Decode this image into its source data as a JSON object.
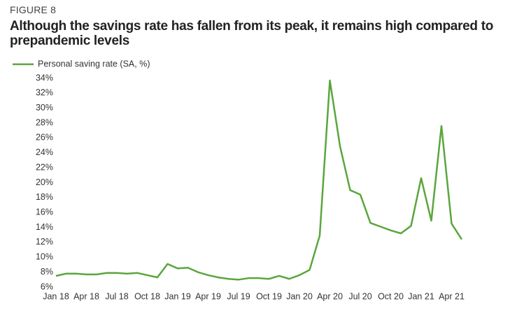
{
  "chart_data": {
    "type": "line",
    "figure_label": "FIGURE 8",
    "title": "Although the savings rate has fallen from its peak, it remains high compared to prepandemic levels",
    "categories": [
      "Jan 18",
      null,
      null,
      "Apr 18",
      null,
      null,
      "Jul 18",
      null,
      null,
      "Oct 18",
      null,
      null,
      "Jan 19",
      null,
      null,
      "Apr 19",
      null,
      null,
      "Jul 19",
      null,
      null,
      "Oct 19",
      null,
      null,
      "Jan 20",
      null,
      null,
      "Apr 20",
      null,
      null,
      "Jul 20",
      null,
      null,
      "Oct 20",
      null,
      null,
      "Jan 21",
      null,
      null,
      "Apr 21",
      null
    ],
    "series": [
      {
        "name": "Personal saving rate (SA, %)",
        "color": "#5aa63c",
        "values": [
          7.5,
          7.8,
          7.8,
          7.7,
          7.7,
          7.9,
          7.9,
          7.8,
          7.9,
          7.6,
          7.3,
          9.1,
          8.5,
          8.6,
          8.0,
          7.6,
          7.3,
          7.1,
          7.0,
          7.2,
          7.2,
          7.1,
          7.5,
          7.1,
          7.6,
          8.3,
          12.9,
          33.7,
          24.9,
          19.0,
          18.4,
          14.6,
          14.1,
          13.6,
          13.2,
          14.2,
          20.6,
          14.9,
          27.6,
          14.5,
          12.4
        ]
      }
    ],
    "ylim": [
      6,
      34
    ],
    "yticks": [
      {
        "value": 6,
        "label": "6%"
      },
      {
        "value": 8,
        "label": "8%"
      },
      {
        "value": 10,
        "label": "10%"
      },
      {
        "value": 12,
        "label": "12%"
      },
      {
        "value": 14,
        "label": "14%"
      },
      {
        "value": 16,
        "label": "16%"
      },
      {
        "value": 18,
        "label": "18%"
      },
      {
        "value": 20,
        "label": "20%"
      },
      {
        "value": 22,
        "label": "22%"
      },
      {
        "value": 24,
        "label": "24%"
      },
      {
        "value": 26,
        "label": "26%"
      },
      {
        "value": 28,
        "label": "28%"
      },
      {
        "value": 30,
        "label": "30%"
      },
      {
        "value": 32,
        "label": "32%"
      },
      {
        "value": 34,
        "label": "34%"
      }
    ],
    "grid": false
  }
}
